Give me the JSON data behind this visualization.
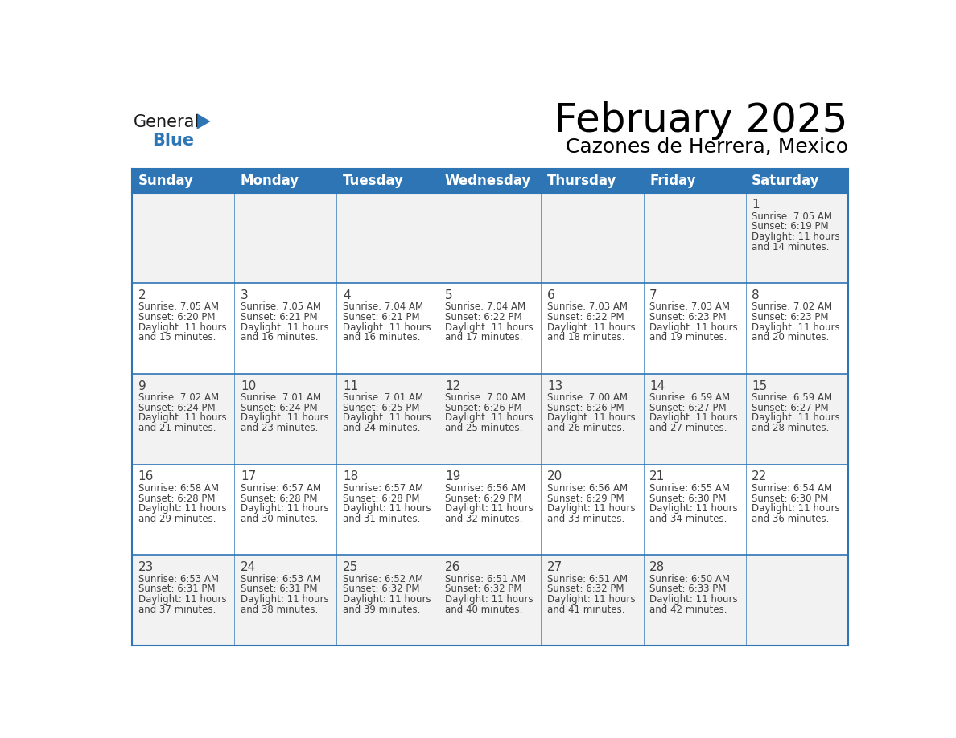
{
  "title": "February 2025",
  "subtitle": "Cazones de Herrera, Mexico",
  "header_color": "#2E75B6",
  "header_text_color": "#FFFFFF",
  "cell_bg_white": "#FFFFFF",
  "cell_bg_gray": "#F2F2F2",
  "cell_border_color": "#2E75B6",
  "day_num_color": "#404040",
  "info_text_color": "#404040",
  "days_of_week": [
    "Sunday",
    "Monday",
    "Tuesday",
    "Wednesday",
    "Thursday",
    "Friday",
    "Saturday"
  ],
  "calendar_data": [
    [
      null,
      null,
      null,
      null,
      null,
      null,
      {
        "day": 1,
        "sunrise": "7:05 AM",
        "sunset": "6:19 PM",
        "daylight": "11 hours and 14 minutes."
      }
    ],
    [
      {
        "day": 2,
        "sunrise": "7:05 AM",
        "sunset": "6:20 PM",
        "daylight": "11 hours and 15 minutes."
      },
      {
        "day": 3,
        "sunrise": "7:05 AM",
        "sunset": "6:21 PM",
        "daylight": "11 hours and 16 minutes."
      },
      {
        "day": 4,
        "sunrise": "7:04 AM",
        "sunset": "6:21 PM",
        "daylight": "11 hours and 16 minutes."
      },
      {
        "day": 5,
        "sunrise": "7:04 AM",
        "sunset": "6:22 PM",
        "daylight": "11 hours and 17 minutes."
      },
      {
        "day": 6,
        "sunrise": "7:03 AM",
        "sunset": "6:22 PM",
        "daylight": "11 hours and 18 minutes."
      },
      {
        "day": 7,
        "sunrise": "7:03 AM",
        "sunset": "6:23 PM",
        "daylight": "11 hours and 19 minutes."
      },
      {
        "day": 8,
        "sunrise": "7:02 AM",
        "sunset": "6:23 PM",
        "daylight": "11 hours and 20 minutes."
      }
    ],
    [
      {
        "day": 9,
        "sunrise": "7:02 AM",
        "sunset": "6:24 PM",
        "daylight": "11 hours and 21 minutes."
      },
      {
        "day": 10,
        "sunrise": "7:01 AM",
        "sunset": "6:24 PM",
        "daylight": "11 hours and 23 minutes."
      },
      {
        "day": 11,
        "sunrise": "7:01 AM",
        "sunset": "6:25 PM",
        "daylight": "11 hours and 24 minutes."
      },
      {
        "day": 12,
        "sunrise": "7:00 AM",
        "sunset": "6:26 PM",
        "daylight": "11 hours and 25 minutes."
      },
      {
        "day": 13,
        "sunrise": "7:00 AM",
        "sunset": "6:26 PM",
        "daylight": "11 hours and 26 minutes."
      },
      {
        "day": 14,
        "sunrise": "6:59 AM",
        "sunset": "6:27 PM",
        "daylight": "11 hours and 27 minutes."
      },
      {
        "day": 15,
        "sunrise": "6:59 AM",
        "sunset": "6:27 PM",
        "daylight": "11 hours and 28 minutes."
      }
    ],
    [
      {
        "day": 16,
        "sunrise": "6:58 AM",
        "sunset": "6:28 PM",
        "daylight": "11 hours and 29 minutes."
      },
      {
        "day": 17,
        "sunrise": "6:57 AM",
        "sunset": "6:28 PM",
        "daylight": "11 hours and 30 minutes."
      },
      {
        "day": 18,
        "sunrise": "6:57 AM",
        "sunset": "6:28 PM",
        "daylight": "11 hours and 31 minutes."
      },
      {
        "day": 19,
        "sunrise": "6:56 AM",
        "sunset": "6:29 PM",
        "daylight": "11 hours and 32 minutes."
      },
      {
        "day": 20,
        "sunrise": "6:56 AM",
        "sunset": "6:29 PM",
        "daylight": "11 hours and 33 minutes."
      },
      {
        "day": 21,
        "sunrise": "6:55 AM",
        "sunset": "6:30 PM",
        "daylight": "11 hours and 34 minutes."
      },
      {
        "day": 22,
        "sunrise": "6:54 AM",
        "sunset": "6:30 PM",
        "daylight": "11 hours and 36 minutes."
      }
    ],
    [
      {
        "day": 23,
        "sunrise": "6:53 AM",
        "sunset": "6:31 PM",
        "daylight": "11 hours and 37 minutes."
      },
      {
        "day": 24,
        "sunrise": "6:53 AM",
        "sunset": "6:31 PM",
        "daylight": "11 hours and 38 minutes."
      },
      {
        "day": 25,
        "sunrise": "6:52 AM",
        "sunset": "6:32 PM",
        "daylight": "11 hours and 39 minutes."
      },
      {
        "day": 26,
        "sunrise": "6:51 AM",
        "sunset": "6:32 PM",
        "daylight": "11 hours and 40 minutes."
      },
      {
        "day": 27,
        "sunrise": "6:51 AM",
        "sunset": "6:32 PM",
        "daylight": "11 hours and 41 minutes."
      },
      {
        "day": 28,
        "sunrise": "6:50 AM",
        "sunset": "6:33 PM",
        "daylight": "11 hours and 42 minutes."
      },
      null
    ]
  ],
  "logo_general_color": "#1a1a1a",
  "logo_blue_color": "#2E75B6",
  "logo_triangle_color": "#2E75B6",
  "title_fontsize": 36,
  "subtitle_fontsize": 18,
  "header_fontsize": 12,
  "day_num_fontsize": 11,
  "info_fontsize": 8.5
}
